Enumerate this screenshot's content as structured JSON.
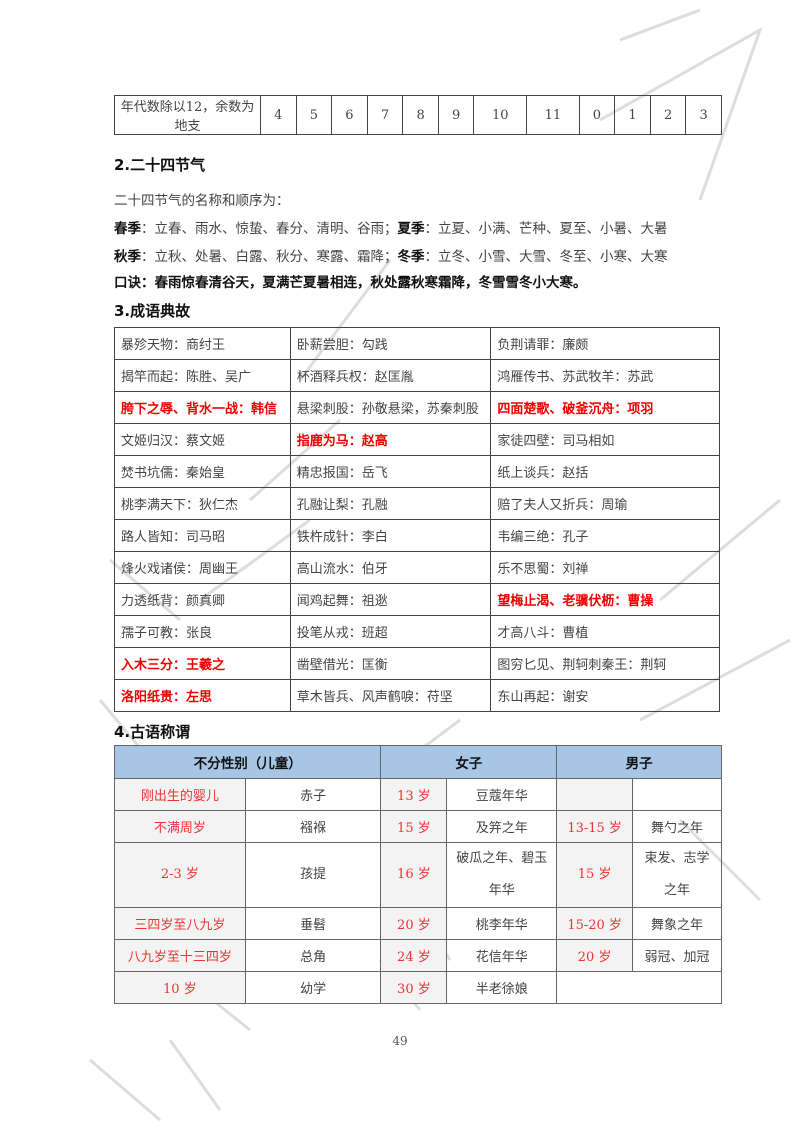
{
  "dizhi_row": {
    "label": "年代数除以12，余数为地支",
    "values": [
      "4",
      "5",
      "6",
      "7",
      "8",
      "9",
      "10",
      "11",
      "0",
      "1",
      "2",
      "3"
    ]
  },
  "section2": {
    "heading": "2.二十四节气",
    "intro": "二十四节气的名称和顺序为：",
    "spring_label": "春季",
    "spring": "：立春、雨水、惊蛰、春分、清明、谷雨；",
    "summer_label": "夏季",
    "summer": "：立夏、小满、芒种、夏至、小暑、大暑",
    "autumn_label": "秋季",
    "autumn": "：立秋、处暑、白露、秋分、寒露、霜降；",
    "winter_label": "冬季",
    "winter": "：立冬、小雪、大雪、冬至、小寒、大寒",
    "rhyme": "口诀：春雨惊春清谷天，夏满芒夏暑相连，秋处露秋寒霜降，冬雪雪冬小大寒。"
  },
  "section3": {
    "heading": "3.成语典故",
    "rows": [
      [
        {
          "t": "暴殄天物：商纣王"
        },
        {
          "t": "卧薪尝胆：勾践"
        },
        {
          "t": "负荆请罪：廉颇"
        }
      ],
      [
        {
          "t": "揭竿而起：陈胜、吴广"
        },
        {
          "t": "杯酒释兵权：赵匡胤"
        },
        {
          "t": "鸿雁传书、苏武牧羊：苏武"
        }
      ],
      [
        {
          "t": "胯下之辱、背水一战：韩信",
          "red": true
        },
        {
          "t": "悬梁刺股：孙敬悬梁，苏秦刺股"
        },
        {
          "t": "四面楚歌、破釜沉舟：项羽",
          "red": true
        }
      ],
      [
        {
          "t": "文姬归汉：蔡文姬"
        },
        {
          "t": "指鹿为马：赵高",
          "red": true
        },
        {
          "t": "家徒四壁：司马相如"
        }
      ],
      [
        {
          "t": "焚书坑儒：秦始皇"
        },
        {
          "t": "精忠报国：岳飞"
        },
        {
          "t": "纸上谈兵：赵括"
        }
      ],
      [
        {
          "t": "桃李满天下：狄仁杰"
        },
        {
          "t": "孔融让梨：孔融"
        },
        {
          "t": "赔了夫人又折兵：周瑜"
        }
      ],
      [
        {
          "t": "路人皆知：司马昭"
        },
        {
          "t": "铁杵成针：李白"
        },
        {
          "t": "韦编三绝：孔子"
        }
      ],
      [
        {
          "t": "烽火戏诸侯：周幽王"
        },
        {
          "t": "高山流水：伯牙"
        },
        {
          "t": "乐不思蜀：刘禅"
        }
      ],
      [
        {
          "t": "力透纸背：颜真卿"
        },
        {
          "t": "闻鸡起舞：祖逖"
        },
        {
          "t": "望梅止渴、老骥伏枥：曹操",
          "red": true
        }
      ],
      [
        {
          "t": "孺子可教：张良"
        },
        {
          "t": "投笔从戎：班超"
        },
        {
          "t": "才高八斗：曹植"
        }
      ],
      [
        {
          "t": "入木三分：王羲之",
          "red": true
        },
        {
          "t": "凿壁借光：匡衡"
        },
        {
          "t": "图穷匕见、荆轲刺秦王：荆轲"
        }
      ],
      [
        {
          "t": "洛阳纸贵：左思",
          "red": true
        },
        {
          "t": "草木皆兵、风声鹤唳：苻坚"
        },
        {
          "t": "东山再起：谢安"
        }
      ]
    ]
  },
  "section4": {
    "heading": "4.古语称谓",
    "headers": [
      "不分性别（儿童）",
      "女子",
      "男子"
    ],
    "rows": [
      [
        "刚出生的婴儿",
        "赤子",
        "13 岁",
        "豆蔻年华",
        "",
        ""
      ],
      [
        "不满周岁",
        "襁褓",
        "15 岁",
        "及笄之年",
        "13-15 岁",
        "舞勺之年"
      ],
      [
        "2-3 岁",
        "孩提",
        "16 岁",
        "破瓜之年、碧玉年华",
        "15 岁",
        "束发、志学之年"
      ],
      [
        "三四岁至八九岁",
        "垂髫",
        "20 岁",
        "桃李年华",
        "15-20 岁",
        "舞象之年"
      ],
      [
        "八九岁至十三四岁",
        "总角",
        "24 岁",
        "花信年华",
        "20 岁",
        "弱冠、加冠"
      ],
      [
        "10 岁",
        "幼学",
        "30 岁",
        "半老徐娘",
        "",
        ""
      ]
    ]
  },
  "page_number": "49",
  "colors": {
    "red": "#ee0000",
    "header_blue": "#a7c6e6",
    "age_gray": "#f3f3f3"
  }
}
